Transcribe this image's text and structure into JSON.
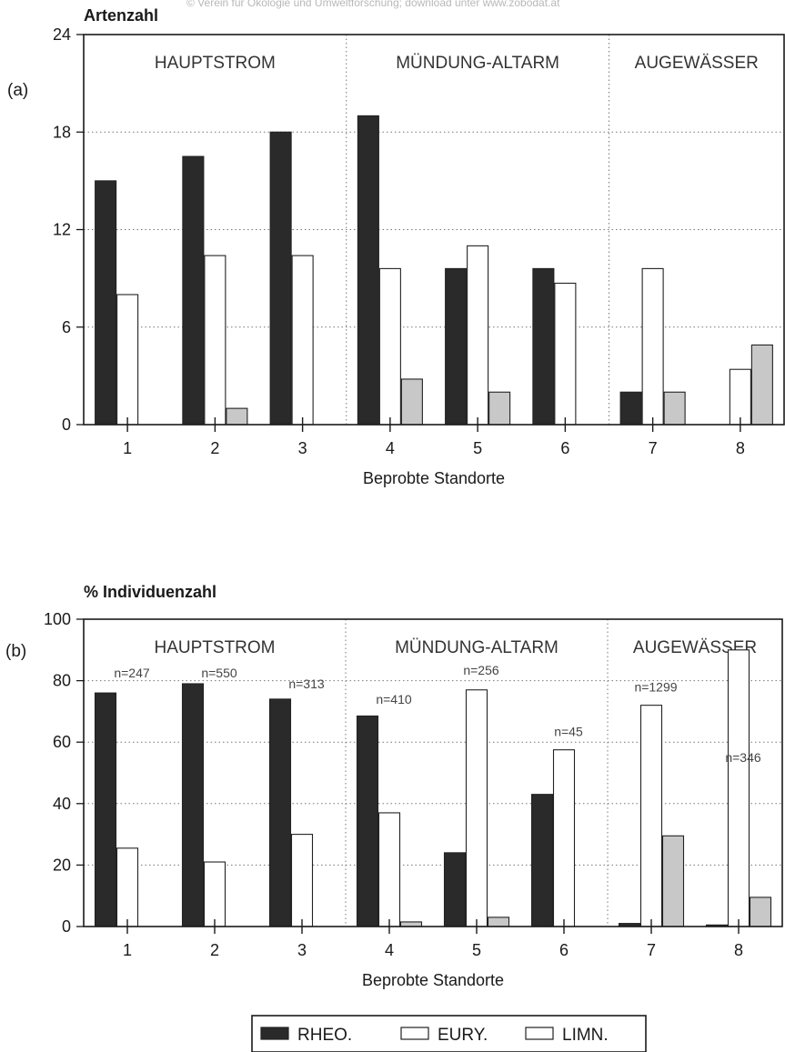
{
  "watermark": "© Verein für Ökologie und Umweltforschung; download unter www.zobodat.at",
  "colors": {
    "rheo": "#2a2a2a",
    "eury": "#ffffff",
    "limn": "#c8c8c8",
    "axis": "#1a1a1a",
    "grid": "#777777"
  },
  "chart_data": [
    {
      "type": "bar",
      "panel_label": "(a)",
      "title": "Artenzahl",
      "xlabel": "Beprobte Standorte",
      "ylabel": "",
      "ylim": [
        0,
        24
      ],
      "yticks": [
        "0",
        "6",
        "12",
        "18",
        "24"
      ],
      "categories": [
        "1",
        "2",
        "3",
        "4",
        "5",
        "6",
        "7",
        "8"
      ],
      "grid": "dotted-horizontal",
      "sections": [
        {
          "label": "HAUPTSTROM",
          "from": 1,
          "to": 3
        },
        {
          "label": "MÜNDUNG-ALTARM",
          "from": 4,
          "to": 6
        },
        {
          "label": "AUGEWÄSSER",
          "from": 7,
          "to": 8
        }
      ],
      "series": [
        {
          "name": "RHEO.",
          "values": [
            15,
            16.5,
            18,
            19,
            9.6,
            9.6,
            2,
            0
          ]
        },
        {
          "name": "EURY.",
          "values": [
            8,
            10.4,
            10.4,
            9.6,
            11,
            8.7,
            9.6,
            3.4
          ]
        },
        {
          "name": "LIMN.",
          "values": [
            0,
            1,
            0,
            2.8,
            2,
            0,
            2,
            4.9
          ]
        }
      ],
      "annotations": []
    },
    {
      "type": "bar",
      "panel_label": "(b)",
      "title": "% Individuenzahl",
      "xlabel": "Beprobte Standorte",
      "ylabel": "",
      "ylim": [
        0,
        100
      ],
      "yticks": [
        "0",
        "20",
        "40",
        "60",
        "80",
        "100"
      ],
      "categories": [
        "1",
        "2",
        "3",
        "4",
        "5",
        "6",
        "7",
        "8"
      ],
      "grid": "dotted-horizontal",
      "sections": [
        {
          "label": "HAUPTSTROM",
          "from": 1,
          "to": 3
        },
        {
          "label": "MÜNDUNG-ALTARM",
          "from": 4,
          "to": 6
        },
        {
          "label": "AUGEWÄSSER",
          "from": 7,
          "to": 8
        }
      ],
      "series": [
        {
          "name": "RHEO.",
          "values": [
            76,
            79,
            74,
            68.5,
            24,
            43,
            1,
            0.5
          ]
        },
        {
          "name": "EURY.",
          "values": [
            25.5,
            21,
            30,
            37,
            77,
            57.5,
            72,
            90
          ]
        },
        {
          "name": "LIMN.",
          "values": [
            0,
            0,
            0,
            1.5,
            3,
            0,
            29.5,
            9.5
          ]
        }
      ],
      "annotations": [
        {
          "category": "1",
          "text": "n=247",
          "value": 81
        },
        {
          "category": "2",
          "text": "n=550",
          "value": 81
        },
        {
          "category": "3",
          "text": "n=313",
          "value": 77.5
        },
        {
          "category": "4",
          "text": "n=410",
          "value": 72.5
        },
        {
          "category": "5",
          "text": "n=256",
          "value": 82
        },
        {
          "category": "6",
          "text": "n=45",
          "value": 62
        },
        {
          "category": "7",
          "text": "n=1299",
          "value": 76.5
        },
        {
          "category": "8",
          "text": "n=346",
          "value": 53.5
        }
      ]
    }
  ],
  "legend": {
    "placement": "bottom-center",
    "items": [
      {
        "label": "RHEO.",
        "series": "rheo"
      },
      {
        "label": "EURY.",
        "series": "eury"
      },
      {
        "label": "LIMN.",
        "series": "limn"
      }
    ]
  }
}
